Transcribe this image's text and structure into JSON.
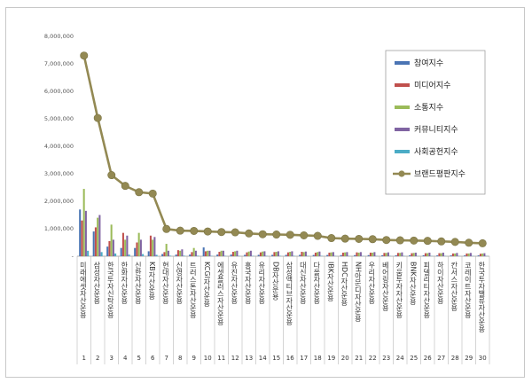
{
  "chart_data": {
    "type": "bar",
    "title": "",
    "xlabel": "",
    "ylabel": "",
    "ylim": [
      0,
      8000000
    ],
    "yticks": [
      0,
      1000000,
      2000000,
      3000000,
      4000000,
      5000000,
      6000000,
      7000000,
      8000000
    ],
    "ytick_labels": [
      "-",
      "1,000,000",
      "2,000,000",
      "3,000,000",
      "4,000,000",
      "5,000,000",
      "6,000,000",
      "7,000,000",
      "8,000,000"
    ],
    "grid": false,
    "legend_position": "right",
    "ranks": [
      "1",
      "2",
      "3",
      "4",
      "5",
      "6",
      "7",
      "8",
      "9",
      "10",
      "11",
      "12",
      "13",
      "14",
      "15",
      "16",
      "17",
      "18",
      "19",
      "20",
      "21",
      "22",
      "23",
      "24",
      "25",
      "26",
      "27",
      "28",
      "29",
      "30"
    ],
    "categories": [
      "미래에셋자산운용",
      "삼성자산운용",
      "한국투자신탁운용",
      "한화자산운용",
      "신한자산운용",
      "KB자산운용",
      "현대자산운용",
      "신영자산운용",
      "트러스톤자산운용",
      "KCGI자산운용",
      "에셋플러스자산운용",
      "유진자산운용",
      "흥국자산운용",
      "유리자산운용",
      "DB자산운용",
      "삼성액티브자산운용",
      "대신자산운용",
      "다올자산운용",
      "IBK자산운용",
      "HDC자산운용",
      "NH아문디자산운용",
      "우리자산운용",
      "베어링자산운용",
      "키움투자자산운용",
      "BNK자산운용",
      "피델리티자산운용",
      "하이자산운용",
      "칸서스자산운용",
      "코레이트자산운용",
      "한국투자밸류자산운용"
    ],
    "series": [
      {
        "name": "참여지수",
        "color": "#4a74b4",
        "values": [
          1700000,
          900000,
          350000,
          300000,
          300000,
          180000,
          80000,
          60000,
          60000,
          320000,
          60000,
          60000,
          50000,
          50000,
          50000,
          50000,
          50000,
          45000,
          45000,
          40000,
          40000,
          40000,
          35000,
          35000,
          35000,
          35000,
          30000,
          30000,
          30000,
          30000
        ]
      },
      {
        "name": "미디어지수",
        "color": "#c0504d",
        "values": [
          1300000,
          1050000,
          550000,
          850000,
          500000,
          750000,
          150000,
          220000,
          150000,
          180000,
          160000,
          160000,
          140000,
          140000,
          150000,
          140000,
          160000,
          130000,
          130000,
          130000,
          140000,
          130000,
          120000,
          120000,
          110000,
          110000,
          110000,
          100000,
          100000,
          90000
        ]
      },
      {
        "name": "소통지수",
        "color": "#9bbb59",
        "values": [
          2450000,
          1400000,
          1150000,
          600000,
          850000,
          600000,
          450000,
          200000,
          300000,
          200000,
          200000,
          180000,
          170000,
          170000,
          160000,
          160000,
          150000,
          150000,
          140000,
          140000,
          130000,
          130000,
          120000,
          120000,
          120000,
          110000,
          110000,
          100000,
          100000,
          100000
        ]
      },
      {
        "name": "커뮤니티지수",
        "color": "#8064a2",
        "values": [
          1650000,
          1500000,
          600000,
          750000,
          600000,
          700000,
          200000,
          250000,
          200000,
          200000,
          200000,
          200000,
          200000,
          180000,
          180000,
          180000,
          170000,
          170000,
          150000,
          150000,
          150000,
          150000,
          140000,
          140000,
          130000,
          130000,
          130000,
          120000,
          120000,
          110000
        ]
      },
      {
        "name": "사회공헌지수",
        "color": "#4bacc6",
        "values": [
          200000,
          150000,
          100000,
          60000,
          80000,
          50000,
          20000,
          20000,
          20000,
          15000,
          15000,
          15000,
          15000,
          15000,
          15000,
          15000,
          15000,
          15000,
          10000,
          10000,
          10000,
          10000,
          10000,
          10000,
          10000,
          10000,
          10000,
          10000,
          10000,
          10000
        ]
      },
      {
        "name": "브랜드평판지수",
        "color": "#938953",
        "type": "line",
        "values": [
          7300000,
          5030000,
          2950000,
          2560000,
          2330000,
          2280000,
          990000,
          930000,
          920000,
          900000,
          880000,
          870000,
          830000,
          800000,
          790000,
          780000,
          760000,
          740000,
          660000,
          640000,
          630000,
          620000,
          590000,
          580000,
          570000,
          560000,
          540000,
          520000,
          490000,
          470000
        ]
      }
    ]
  }
}
